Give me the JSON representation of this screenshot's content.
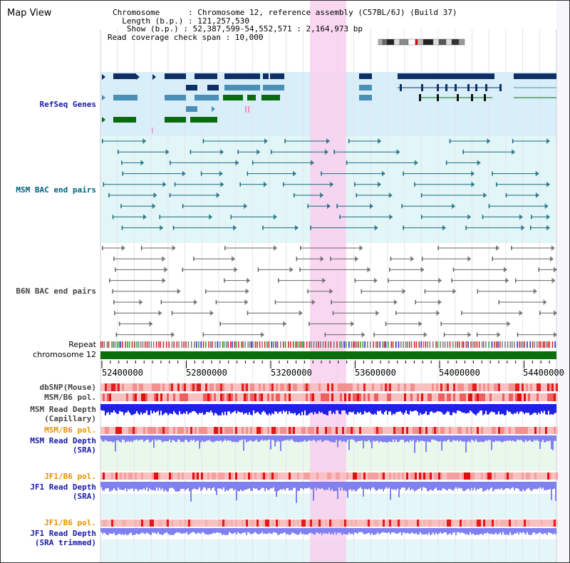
{
  "header": {
    "title": "Map View",
    "info_lines": [
      "Chromosome      : Chromosome 12, reference assembly (C57BL/6J) (Build 37)",
      "  Length (b.p.) : 121,257,530",
      "   Show (b.p.) : 52,387,599-54,552,571 : 2,164,973 bp",
      "Read coverage check span : 10,000"
    ]
  },
  "tracks": {
    "refseq": "RefSeq Genes",
    "msm_bac": "MSM BAC end pairs",
    "b6n_bac": "B6N BAC end pairs",
    "repeat": "Repeat",
    "chromosome": "chromosome 12",
    "dbsnp": "dbSNP(Mouse)",
    "msm_b6_pol_1": "MSM/B6 pol.",
    "msm_depth_cap_1": "MSM Read Depth",
    "msm_depth_cap_2": "(Capillary)",
    "msm_b6_pol_2": "MSM/B6 pol.",
    "msm_depth_sra_1": "MSM Read Depth",
    "msm_depth_sra_2": "(SRA)",
    "jf1_b6_pol_1": "JF1/B6 pol.",
    "jf1_depth_sra_1": "JF1 Read Depth",
    "jf1_depth_sra_2": "(SRA)",
    "jf1_b6_pol_2": "JF1/B6 pol.",
    "jf1_depth_trim_1": "JF1 Read Depth",
    "jf1_depth_trim_2": "(SRA trimmed)"
  },
  "axis": {
    "ticks": [
      "52400000",
      "52800000",
      "53200000",
      "53600000",
      "54000000",
      "54400000"
    ]
  },
  "colors": {
    "gene_dark": "#0d2f66",
    "gene_mid": "#4a8fb8",
    "gene_green": "#0a6a10",
    "refseq_bg": "#d8eef8",
    "msm_bg": "#e2f6f8",
    "msm_feature": "#1a6a80",
    "b6n_feature": "#666666",
    "highlight": "#f8d0ee",
    "chrom_bar": "#0a6e0a",
    "depth_blue": "#2020e8",
    "depth_light": "#8080f0",
    "pol_red": "#ee3030",
    "label_blue": "#1a1aa8",
    "label_orange": "#e89000",
    "label_teal": "#00607a",
    "label_gray": "#444444"
  }
}
